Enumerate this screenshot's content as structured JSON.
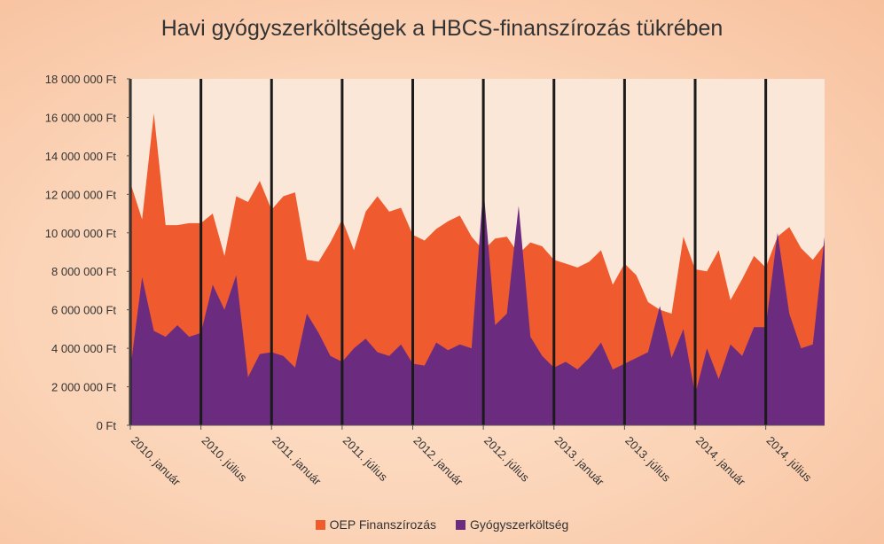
{
  "chart_data": {
    "type": "area",
    "title": "Havi gyógyszerköltségek a HBCS-finanszírozás tükrében",
    "xlabel": "",
    "ylabel": "",
    "ylim": [
      0,
      18000000
    ],
    "y_ticks": [
      0,
      2000000,
      4000000,
      6000000,
      8000000,
      10000000,
      12000000,
      14000000,
      16000000,
      18000000
    ],
    "y_tick_labels": [
      "0 Ft",
      "2 000 000 Ft",
      "4 000 000 Ft",
      "6 000 000 Ft",
      "8 000 000 Ft",
      "10 000 000 Ft",
      "12 000 000 Ft",
      "14 000 000 Ft",
      "16 000 000 Ft",
      "18 000 000 Ft"
    ],
    "x_tick_labels": [
      "2010. január",
      "2010. július",
      "2011. január",
      "2011. július",
      "2012. január",
      "2012. július",
      "2013. január",
      "2013. július",
      "2014. január",
      "2014. július"
    ],
    "x_tick_months": [
      "2010-01",
      "2010-07",
      "2011-01",
      "2011-07",
      "2012-01",
      "2012-07",
      "2013-01",
      "2013-07",
      "2014-01",
      "2014-07"
    ],
    "x_start": "2010-01",
    "x_end": "2014-12",
    "legend_position": "bottom",
    "grid": "vertical lines at x ticks",
    "series": [
      {
        "name": "OEP Finanszírozás",
        "color": "#ef5b2e",
        "values": [
          12600000,
          10700000,
          16200000,
          10400000,
          10400000,
          10500000,
          10500000,
          11000000,
          8800000,
          11900000,
          11600000,
          12700000,
          11200000,
          11900000,
          12100000,
          8600000,
          8500000,
          9500000,
          10700000,
          9100000,
          11100000,
          11900000,
          11100000,
          11300000,
          9900000,
          9600000,
          10200000,
          10600000,
          10900000,
          9800000,
          9100000,
          9700000,
          9800000,
          8900000,
          9500000,
          9300000,
          8600000,
          8400000,
          8200000,
          8500000,
          9100000,
          7300000,
          8400000,
          7800000,
          6400000,
          6000000,
          5800000,
          9800000,
          8100000,
          8000000,
          9100000,
          6500000,
          7600000,
          8800000,
          8200000,
          9800000,
          10300000,
          9200000,
          8600000,
          9400000
        ]
      },
      {
        "name": "Gyógyszerköltség",
        "color": "#6b2c80",
        "values": [
          2900000,
          7700000,
          4900000,
          4600000,
          5200000,
          4600000,
          4800000,
          7300000,
          6000000,
          7800000,
          2500000,
          3700000,
          3800000,
          3600000,
          3000000,
          5800000,
          4800000,
          3600000,
          3300000,
          4000000,
          4500000,
          3800000,
          3600000,
          4200000,
          3200000,
          3100000,
          4300000,
          3900000,
          4200000,
          4000000,
          12400000,
          5200000,
          5800000,
          11400000,
          4600000,
          3600000,
          3000000,
          3300000,
          2900000,
          3500000,
          4300000,
          2900000,
          3200000,
          3500000,
          3800000,
          6200000,
          3500000,
          5000000,
          1600000,
          4000000,
          2400000,
          4200000,
          3600000,
          5100000,
          5100000,
          10000000,
          5800000,
          4000000,
          4200000,
          9800000
        ]
      }
    ]
  },
  "legend": {
    "items": [
      {
        "label": "OEP Finanszírozás",
        "color": "#ef5b2e"
      },
      {
        "label": "Gyógyszerköltség",
        "color": "#6b2c80"
      }
    ]
  }
}
